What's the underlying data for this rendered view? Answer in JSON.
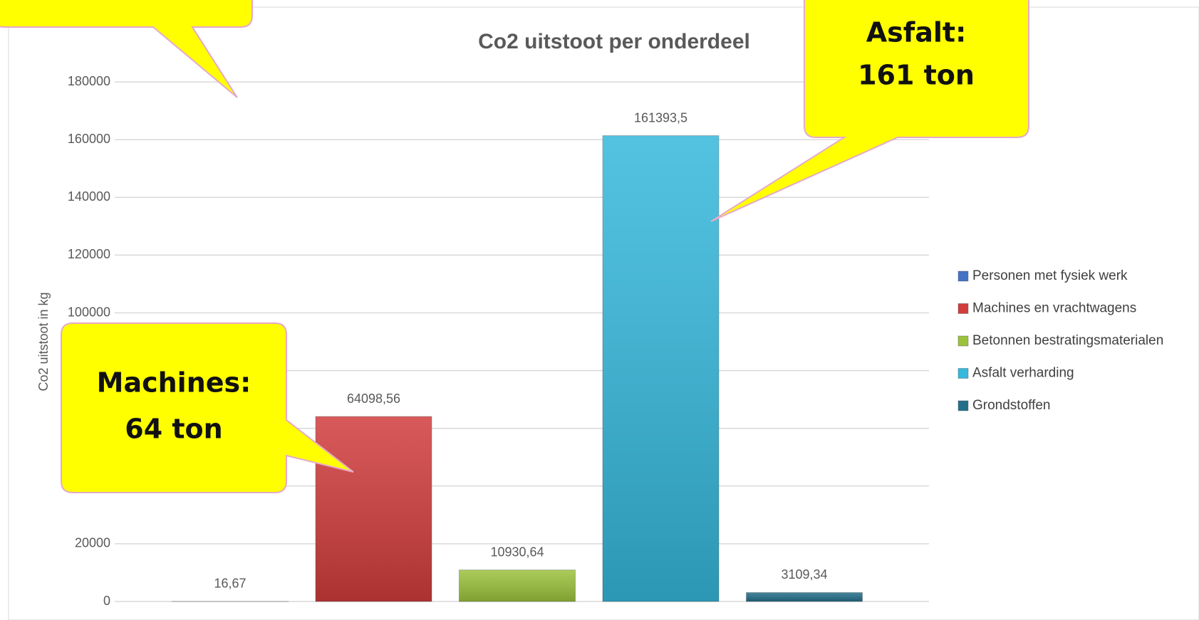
{
  "chart_data": {
    "type": "bar",
    "title": "Co2 uitstoot per onderdeel",
    "y_label": "Co2 uitstoot in kg",
    "series": [
      {
        "name": "Personen met fysiek werk",
        "color": "#4472c4",
        "values": [
          16.67
        ],
        "value_labels": [
          "16,67"
        ]
      },
      {
        "name": "Machines en vrachtwagens",
        "color": "#d13c3c",
        "values": [
          64098.56
        ],
        "value_labels": [
          "64098,56"
        ]
      },
      {
        "name": "Betonnen bestratingsmaterialen",
        "color": "#9bc23c",
        "values": [
          10930.64
        ],
        "value_labels": [
          "10930,64"
        ]
      },
      {
        "name": "Asfalt verharding",
        "color": "#35b8dc",
        "values": [
          161393.5
        ],
        "value_labels": [
          "161393,5"
        ]
      },
      {
        "name": "Grondstoffen",
        "color": "#236f8a",
        "values": [
          3109.34
        ],
        "value_labels": [
          "3109,34"
        ]
      }
    ],
    "ylim": [
      0,
      200000
    ],
    "yticks": [
      0,
      20000,
      40000,
      60000,
      80000,
      100000,
      120000,
      140000,
      160000,
      180000
    ],
    "grid": true,
    "legend": "right",
    "annotations": [
      [
        "Machines:",
        "64 ton"
      ],
      [
        "Asfalt:",
        "161 ton"
      ]
    ]
  }
}
